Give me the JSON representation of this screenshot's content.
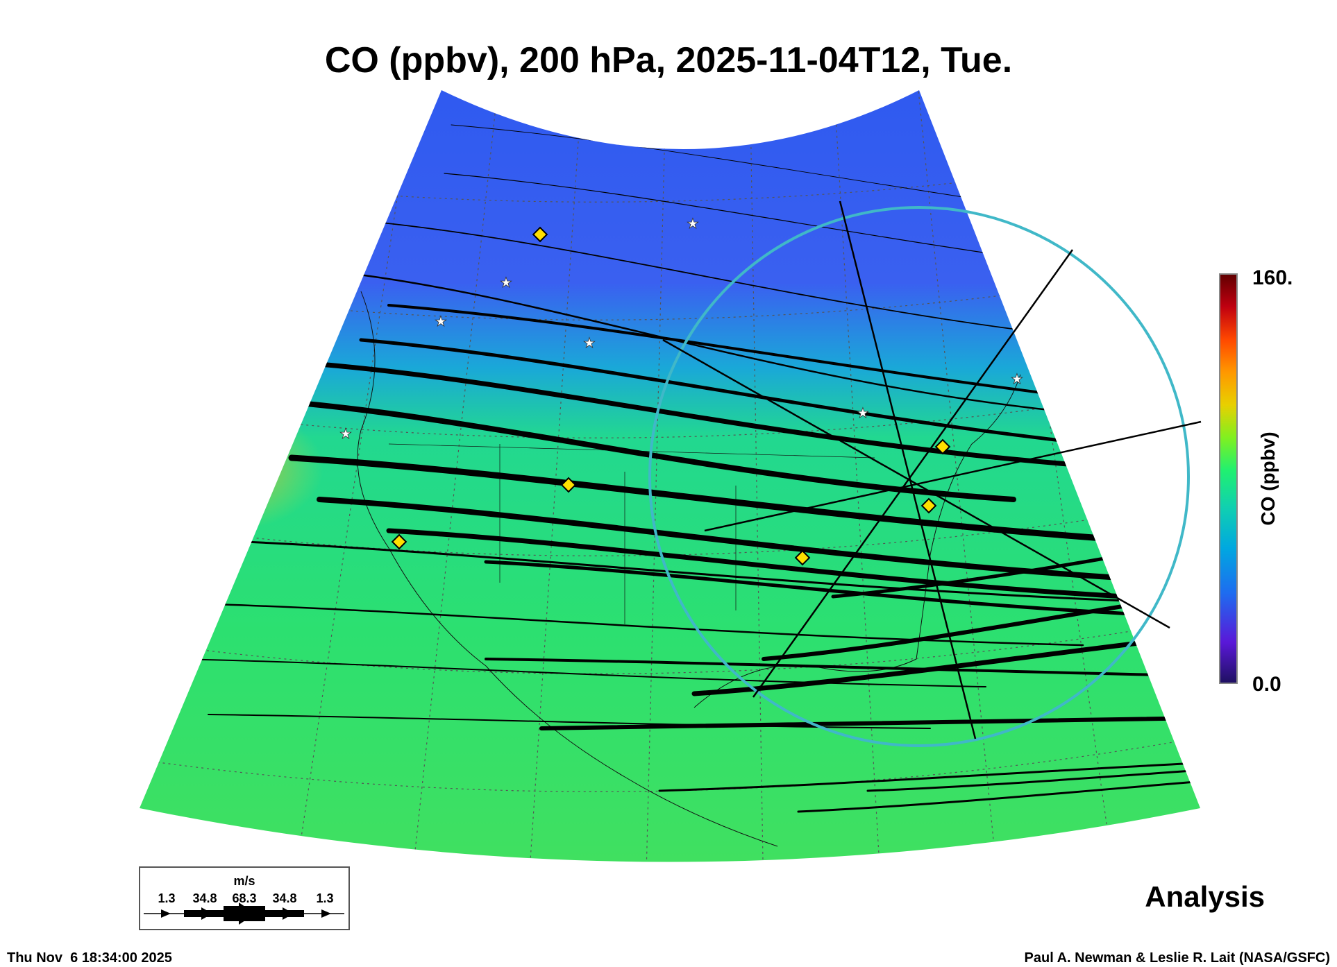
{
  "chart_data": {
    "type": "heatmap",
    "title": "CO (ppbv), 200 hPa, 2025-11-04T12, Tue.",
    "variable": "CO (ppbv)",
    "colorbar": {
      "label": "CO (ppbv)",
      "min_label": "0.0",
      "max_label": "160.",
      "range": [
        0,
        160
      ]
    },
    "colors": {
      "low": "#1e1a6e",
      "blue": "#3a5cf0",
      "cyan": "#19c8c0",
      "green": "#32e060",
      "yellow": "#e0d020",
      "orange": "#ff6000",
      "high": "#600000"
    },
    "overlay": "wind streamlines",
    "wind_legend": {
      "unit": "m/s",
      "values": [
        "1.3",
        "34.8",
        "68.3",
        "34.8",
        "1.3"
      ]
    },
    "label": "Analysis"
  },
  "footer": {
    "timestamp": "Thu Nov  6 18:34:00 2025",
    "credit": "Paul A. Newman & Leslie R. Lait (NASA/GSFC)"
  }
}
